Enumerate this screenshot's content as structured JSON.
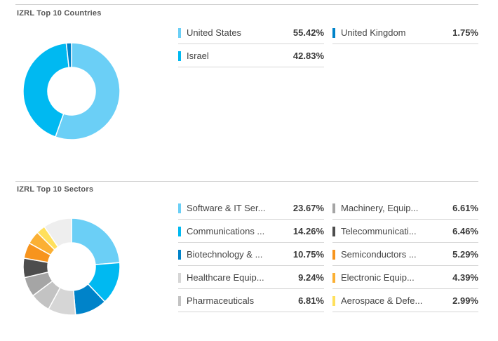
{
  "chart_data": [
    {
      "type": "pie",
      "title": "IZRL Top 10 Countries",
      "unit": "%",
      "categories": [
        "United States",
        "Israel",
        "United Kingdom"
      ],
      "values": [
        55.42,
        42.83,
        1.75
      ],
      "colors": [
        "#6bcff6",
        "#00b9f1",
        "#0083c9"
      ]
    },
    {
      "type": "pie",
      "title": "IZRL Top 10 Sectors",
      "unit": "%",
      "categories": [
        "Software & IT Ser...",
        "Communications ...",
        "Biotechnology & ...",
        "Healthcare Equip...",
        "Pharmaceuticals",
        "Machinery, Equip...",
        "Telecommunicati...",
        "Semiconductors ...",
        "Electronic Equip...",
        "Aerospace & Defe..."
      ],
      "values": [
        23.67,
        14.26,
        10.75,
        9.24,
        6.81,
        6.61,
        6.46,
        5.29,
        4.39,
        2.99
      ],
      "colors": [
        "#6bcff6",
        "#00b9f1",
        "#0083c9",
        "#d6d6d6",
        "#c3c3c3",
        "#a5a5a5",
        "#4d4d4d",
        "#f7941d",
        "#fbb034",
        "#ffe05c"
      ],
      "remainder_color": "#eeeeee"
    }
  ]
}
